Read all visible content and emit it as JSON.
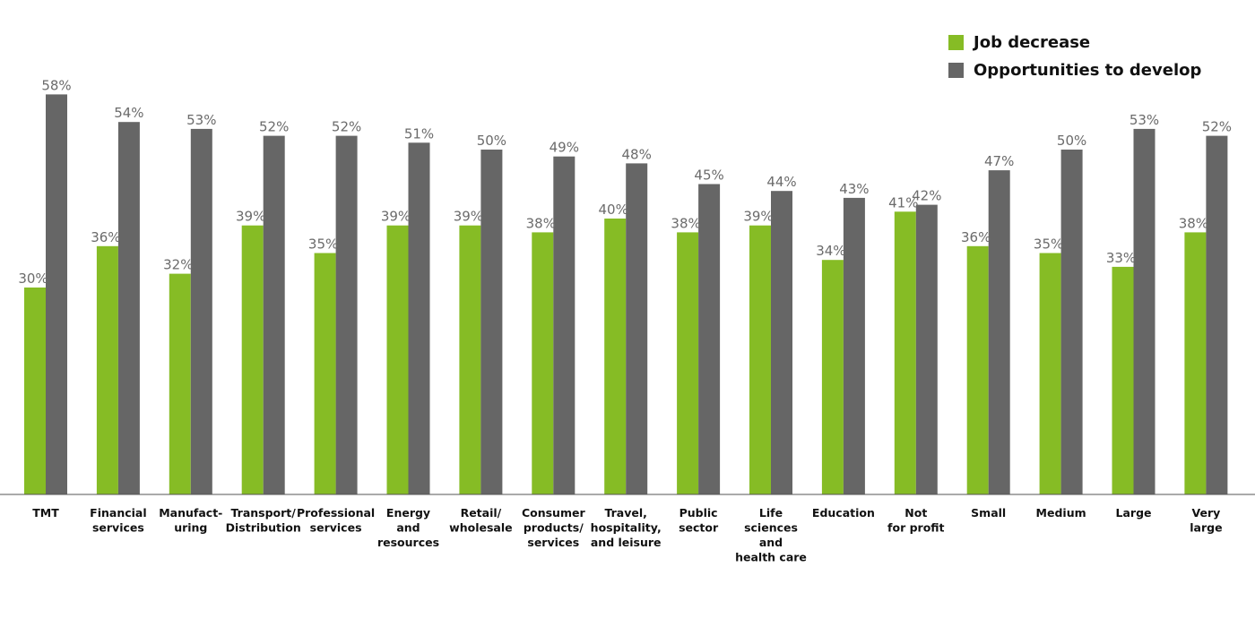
{
  "chart_data": {
    "type": "bar",
    "categories": [
      [
        "TMT"
      ],
      [
        "Financial",
        "services"
      ],
      [
        "Manufact-",
        "uring"
      ],
      [
        "Transport/",
        "Distribution"
      ],
      [
        "Professional",
        "services"
      ],
      [
        "Energy",
        "and",
        "resources"
      ],
      [
        "Retail/",
        "wholesale"
      ],
      [
        "Consumer",
        "products/",
        "services"
      ],
      [
        "Travel,",
        "hospitality,",
        "and leisure"
      ],
      [
        "Public",
        "sector"
      ],
      [
        "Life",
        "sciences",
        "and",
        "health care"
      ],
      [
        "Education"
      ],
      [
        "Not",
        "for profit"
      ],
      [
        "Small"
      ],
      [
        "Medium"
      ],
      [
        "Large"
      ],
      [
        "Very",
        "large"
      ]
    ],
    "series": [
      {
        "name": "Job decrease",
        "color": "#86bc25",
        "values": [
          30,
          36,
          32,
          39,
          35,
          39,
          39,
          38,
          40,
          38,
          39,
          34,
          41,
          36,
          35,
          33,
          38
        ]
      },
      {
        "name": "Opportunities to develop",
        "color": "#666666",
        "values": [
          58,
          54,
          53,
          52,
          52,
          51,
          50,
          49,
          48,
          45,
          44,
          43,
          42,
          47,
          50,
          53,
          52
        ]
      }
    ],
    "value_suffix": "%",
    "ylim": [
      0,
      60
    ],
    "grid": false,
    "legend_position": "top-right",
    "title": "",
    "xlabel": "",
    "ylabel": ""
  }
}
